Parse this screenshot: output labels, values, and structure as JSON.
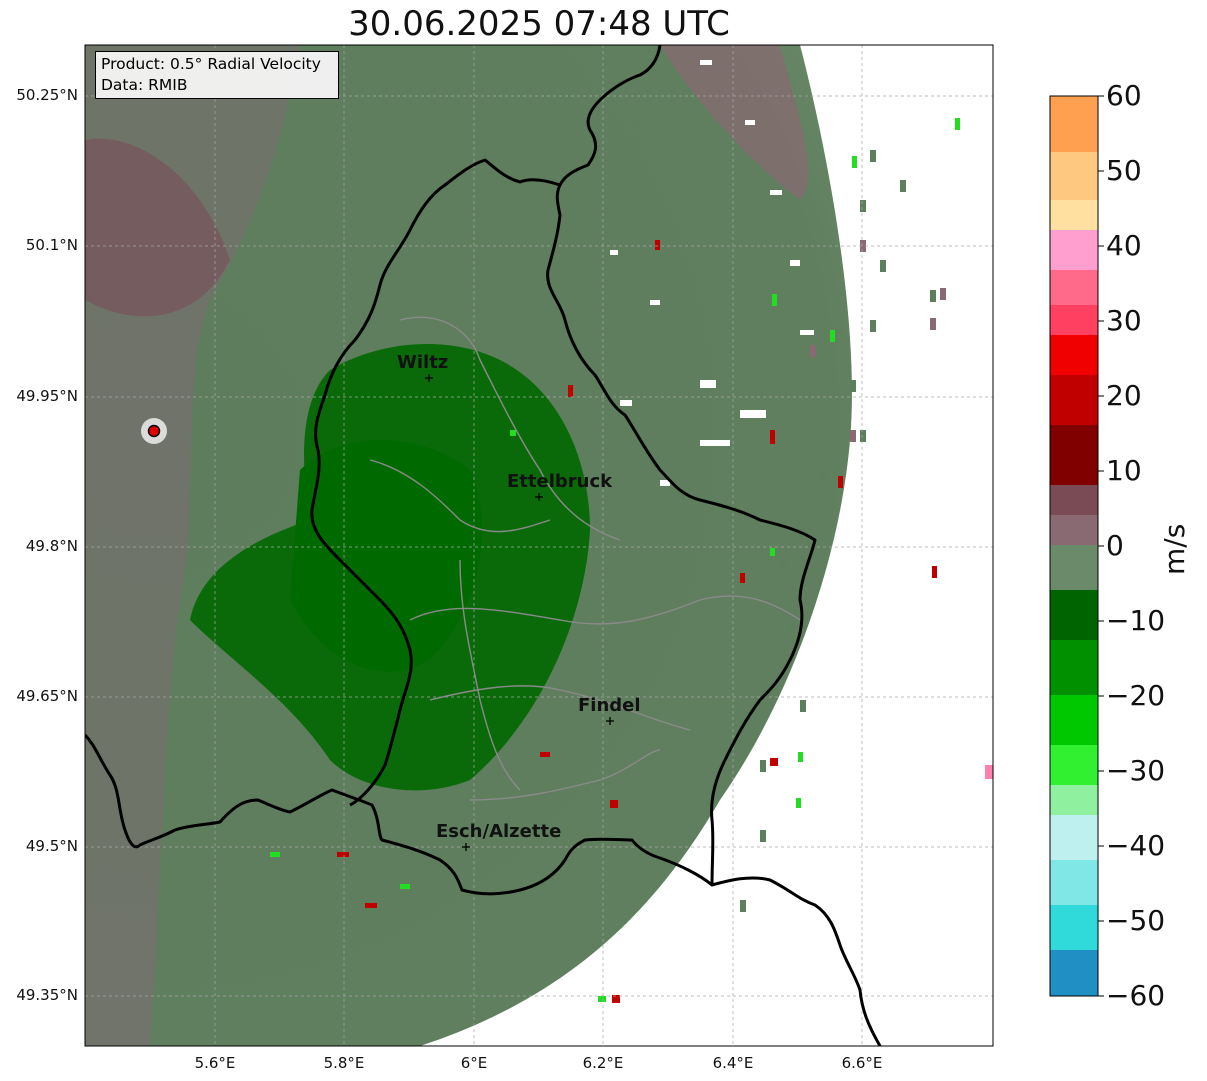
{
  "title": "30.06.2025 07:48 UTC",
  "info": {
    "line1": "Product: 0.5° Radial Velocity",
    "line2": "Data: RMIB"
  },
  "latitude_labels": [
    "50.25°N",
    "50.1°N",
    "49.95°N",
    "49.8°N",
    "49.65°N",
    "49.5°N",
    "49.35°N"
  ],
  "longitude_labels": [
    "5.6°E",
    "5.8°E",
    "6°E",
    "6.2°E",
    "6.4°E",
    "6.6°E"
  ],
  "cities": [
    "Wiltz",
    "Ettelbruck",
    "Findel",
    "Esch/Alzette"
  ],
  "colorbar": {
    "unit": "m/s",
    "ticks": [
      "60",
      "50",
      "40",
      "30",
      "20",
      "10",
      "0",
      "−10",
      "−20",
      "−30",
      "−40",
      "−50",
      "−60"
    ],
    "colors": {
      "pos_high": "#ffa050",
      "pos_light": "#ffe89a",
      "pink": "#ff8fd0",
      "red": "#ff0000",
      "darkred": "#7a0000",
      "mauve": "#8a6a72",
      "zero_gray": "#6a8a6a",
      "darkgreen": "#006400",
      "green": "#00dd00",
      "lightgreen": "#8ff0a0",
      "lightcyan": "#bff0f0",
      "cyan": "#30dada",
      "blue": "#1f77b4"
    }
  }
}
